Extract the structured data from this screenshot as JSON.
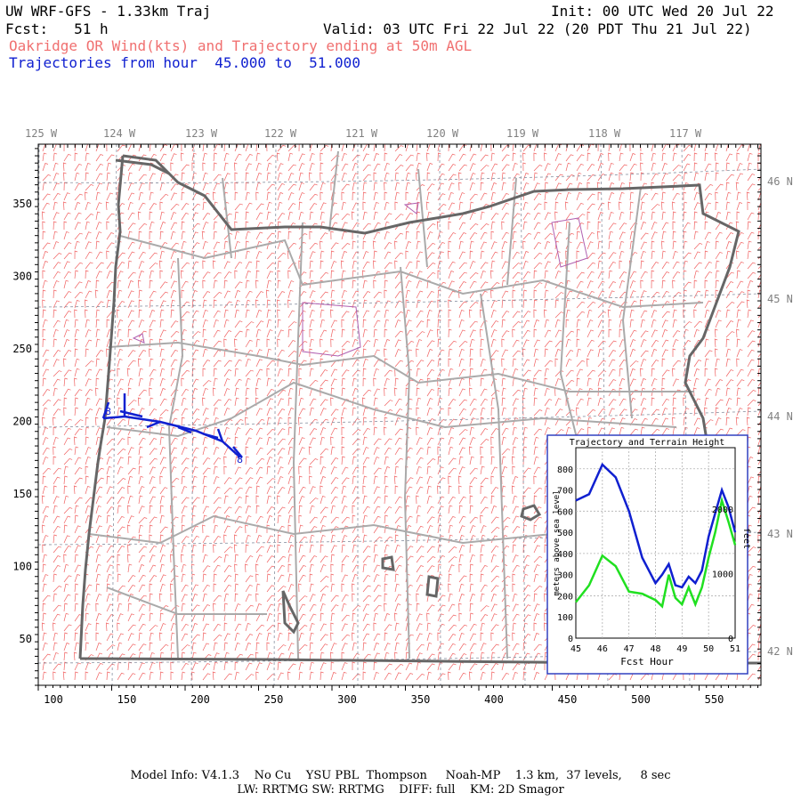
{
  "header": {
    "title": "UW WRF-GFS - 1.33km Traj",
    "init": "Init: 00 UTC Wed 20 Jul 22",
    "fcst": "Fcst:   51 h",
    "valid": "Valid: 03 UTC Fri 22 Jul 22 (20 PDT Thu 21 Jul 22)",
    "subtitle": "Oakridge OR Wind(kts) and Trajectory ending at 50m AGL",
    "traj_hours": "Trajectories from hour  45.000 to  51.000"
  },
  "map": {
    "lon_labels": [
      "125 W",
      "124 W",
      "123 W",
      "122 W",
      "121 W",
      "120 W",
      "119 W",
      "118 W",
      "117 W"
    ],
    "lat_labels": [
      "46 N",
      "45 N",
      "44 N",
      "43 N",
      "42 N"
    ],
    "x_ticks": [
      "100",
      "150",
      "200",
      "250",
      "300",
      "350",
      "400",
      "450",
      "500",
      "550"
    ],
    "y_ticks": [
      "350",
      "300",
      "250",
      "200",
      "150",
      "100",
      "50"
    ],
    "trajectory_marker": "8",
    "colors": {
      "wind_barbs": "#f06060",
      "trajectory": "#1020d0",
      "borders": "#a0a0a0",
      "coast": "#606060",
      "water": "#b060b0"
    }
  },
  "inset": {
    "title": "Trajectory and Terrain Height",
    "ylabel": "meters above sea level",
    "ylabel_right": "feet",
    "xlabel": "Fcst Hour",
    "x_ticks": [
      "45",
      "46",
      "47",
      "48",
      "49",
      "50",
      "51"
    ],
    "y_ticks": [
      "0",
      "100",
      "200",
      "300",
      "400",
      "500",
      "600",
      "700",
      "800"
    ],
    "y_ticks_right": [
      "0",
      "1000",
      "2000"
    ],
    "chart_data": {
      "type": "line",
      "x": [
        45,
        45.5,
        46,
        46.5,
        47,
        47.5,
        48,
        48.25,
        48.5,
        48.75,
        49,
        49.25,
        49.5,
        49.75,
        50,
        50.25,
        50.5,
        50.75,
        51
      ],
      "series": [
        {
          "values": [
            650,
            680,
            820,
            760,
            600,
            380,
            260,
            300,
            350,
            250,
            240,
            290,
            260,
            320,
            480,
            590,
            700,
            620,
            500
          ]
        },
        {
          "values": [
            170,
            250,
            390,
            340,
            220,
            210,
            180,
            150,
            300,
            190,
            160,
            240,
            160,
            240,
            380,
            500,
            650,
            550,
            440
          ]
        }
      ],
      "xlim": [
        45,
        51
      ],
      "ylim": [
        0,
        900
      ]
    }
  },
  "footer": {
    "line1": "Model Info: V4.1.3    No Cu    YSU PBL  Thompson     Noah-MP    1.3 km,  37 levels,     8 sec",
    "line2": "LW: RRTMG SW: RRTMG    DIFF: full    KM: 2D Smagor"
  }
}
